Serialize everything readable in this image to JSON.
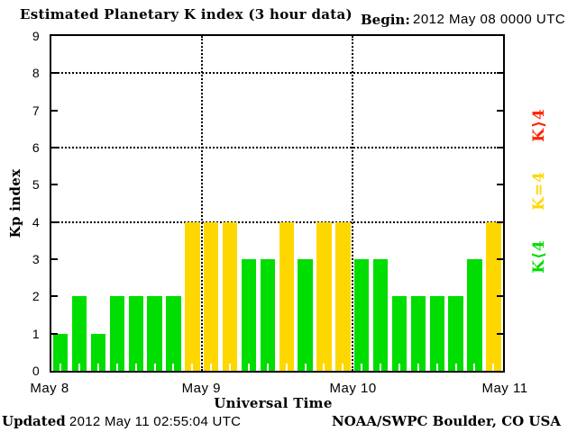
{
  "header": {
    "title": "Estimated Planetary K index (3 hour data)",
    "begin_label": "Begin:",
    "begin_value": "2012 May 08 0000 UTC"
  },
  "chart_data": {
    "type": "bar",
    "title": "Estimated Planetary K index (3 hour data)",
    "xlabel": "Universal Time",
    "ylabel": "Kp index",
    "ylim": [
      0,
      9
    ],
    "yticks": [
      0,
      1,
      2,
      3,
      4,
      5,
      6,
      7,
      8,
      9
    ],
    "gridlines_y": [
      4,
      6,
      8
    ],
    "grid": "dotted horizontal at 4,6,8; dotted vertical at day boundaries",
    "x_day_labels": [
      "May 8",
      "May 9",
      "May 10",
      "May 11"
    ],
    "hours_per_bar": 3,
    "bars_per_day": 8,
    "values": [
      1,
      2,
      1,
      2,
      2,
      2,
      2,
      4,
      4,
      4,
      3,
      3,
      4,
      3,
      4,
      4,
      3,
      3,
      2,
      2,
      2,
      2,
      3,
      4
    ],
    "colors": {
      "k_below_4": "#00dd00",
      "k_equal_4": "#ffd700",
      "k_above_4": "#ff2200"
    },
    "legend": [
      {
        "label": "K⟩4",
        "color": "#ff2200"
      },
      {
        "label": "K=4",
        "color": "#ffd700"
      },
      {
        "label": "K⟨4",
        "color": "#00dd00"
      }
    ],
    "legend_position": "right, rotated 90deg"
  },
  "footer": {
    "updated_label": "Updated",
    "updated_value": "2012 May 11 02:55:04 UTC",
    "source": "NOAA/SWPC Boulder, CO USA"
  }
}
